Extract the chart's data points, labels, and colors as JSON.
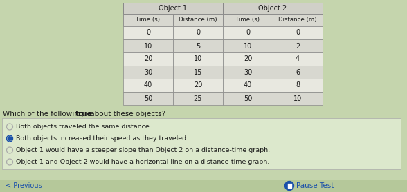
{
  "title_obj1": "Object 1",
  "title_obj2": "Object 2",
  "col_headers": [
    "Time (s)",
    "Distance (m)",
    "Time (s)",
    "Distance (m)"
  ],
  "obj1_time": [
    0,
    10,
    20,
    30,
    40,
    50
  ],
  "obj1_dist": [
    0,
    5,
    10,
    15,
    20,
    25
  ],
  "obj2_time": [
    0,
    10,
    20,
    30,
    40,
    50
  ],
  "obj2_dist": [
    0,
    2,
    4,
    6,
    8,
    10
  ],
  "question_pre": "Which of the following is ",
  "question_bold": "true",
  "question_post": " about these objects?",
  "options": [
    "Both objects traveled the same distance.",
    "Both objects increased their speed as they traveled.",
    "Object 1 would have a steeper slope than Object 2 on a distance-time graph.",
    "Object 1 and Object 2 would have a horizontal line on a distance-time graph."
  ],
  "selected_option": 1,
  "bg_color": "#c5d5ad",
  "table_bg_light": "#e8e8e0",
  "table_bg_dark": "#d8d8d0",
  "table_header_bg": "#d8d8d0",
  "table_top_header_bg": "#d0d0c8",
  "table_border_color": "#888888",
  "option_box_bg": "#dce8cc",
  "option_selected_dot_color": "#1a50aa",
  "option_unselected_color": "#999999",
  "text_color": "#1a1a1a",
  "pause_test_color": "#1a50aa",
  "nav_color": "#1a50aa",
  "fig_width": 5.88,
  "fig_height": 2.78,
  "dpi": 100
}
